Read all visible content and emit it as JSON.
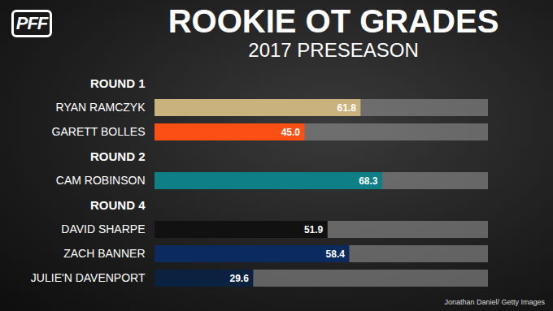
{
  "chart_data": {
    "type": "bar",
    "title": "ROOKIE OT GRADES",
    "subtitle": "2017 PRESEASON",
    "logo": "PFF",
    "credit": "Jonathan Daniel/ Getty Images",
    "orientation": "horizontal",
    "data_labels": true,
    "grid": false,
    "tick_labels": "y",
    "groups": [
      "ROUND 1",
      "ROUND 1",
      "ROUND 2",
      "ROUND 4",
      "ROUND 4",
      "ROUND 4"
    ],
    "categories": [
      "RYAN RAMCZYK",
      "GARETT BOLLES",
      "CAM ROBINSON",
      "DAVID SHARPE",
      "ZACH BANNER",
      "JULIE'N DAVENPORT"
    ],
    "values": [
      61.8,
      45.0,
      68.3,
      51.9,
      58.4,
      29.6
    ],
    "value_labels": [
      "61.8",
      "45.0",
      "68.3",
      "51.9",
      "58.4",
      "29.6"
    ],
    "colors": [
      "#c9b27c",
      "#fb4f14",
      "#0e7f86",
      "#111111",
      "#0b2a5e",
      "#0a2240"
    ],
    "xlim": [
      0,
      100
    ]
  }
}
